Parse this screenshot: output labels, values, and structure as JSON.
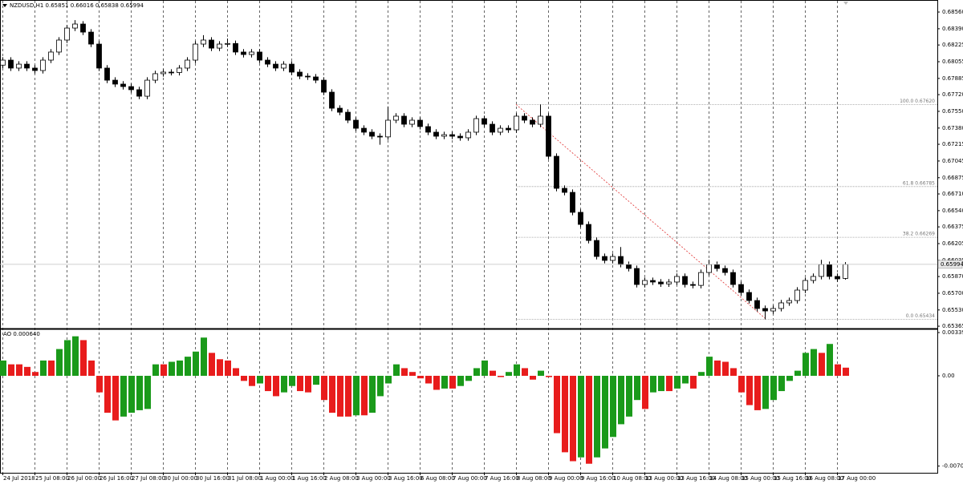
{
  "chart_data": [
    {
      "type": "candlestick",
      "title": "NZDUSD,H1 0.65851 0.66016 0.65838 0.65994",
      "categories": [
        "24 Jul 2018",
        null,
        null,
        null,
        "25 Jul 08:00",
        null,
        null,
        null,
        "26 Jul 00:00",
        null,
        null,
        null,
        "26 Jul 16:00",
        null,
        null,
        null,
        "27 Jul 08:00",
        null,
        null,
        null,
        "30 Jul 00:00",
        null,
        null,
        null,
        "30 Jul 16:00",
        null,
        null,
        null,
        "31 Jul 08:00",
        null,
        null,
        null,
        "1 Aug 00:00",
        null,
        null,
        null,
        "1 Aug 16:00",
        null,
        null,
        null,
        "2 Aug 08:00",
        null,
        null,
        null,
        "3 Aug 00:00",
        null,
        null,
        null,
        "3 Aug 16:00",
        null,
        null,
        null,
        "6 Aug 08:00",
        null,
        null,
        null,
        "7 Aug 00:00",
        null,
        null,
        null,
        "7 Aug 16:00",
        null,
        null,
        null,
        "8 Aug 08:00",
        null,
        null,
        null,
        "9 Aug 00:00",
        null,
        null,
        null,
        "9 Aug 16:00",
        null,
        null,
        null,
        "10 Aug 08:00",
        null,
        null,
        null,
        "13 Aug 00:00",
        null,
        null,
        null,
        "13 Aug 16:00",
        null,
        null,
        null,
        "14 Aug 08:00",
        null,
        null,
        null,
        "15 Aug 00:00",
        null,
        null,
        null,
        "15 Aug 16:00",
        null,
        null,
        null,
        "16 Aug 08:00",
        null,
        null,
        null,
        "17 Aug 00:00",
        null
      ],
      "open": [
        0.6802,
        0.68071,
        0.6799,
        0.6803,
        0.6799,
        0.67965,
        0.68071,
        0.68153,
        0.68275,
        0.68397,
        0.68438,
        0.68356,
        0.68234,
        0.6799,
        0.67867,
        0.67827,
        0.67802,
        0.6777,
        0.67704,
        0.67867,
        0.67933,
        0.67949,
        0.67945,
        0.6799,
        0.68071,
        0.68234,
        0.68275,
        0.68193,
        0.68234,
        0.6824,
        0.68153,
        0.68128,
        0.68153,
        0.68071,
        0.6803,
        0.6799,
        0.6803,
        0.67949,
        0.67908,
        0.679,
        0.67867,
        0.67745,
        0.67582,
        0.67541,
        0.6746,
        0.67378,
        0.67338,
        0.67297,
        0.6729,
        0.6746,
        0.67501,
        0.67419,
        0.6746,
        0.67395,
        0.67338,
        0.67297,
        0.67313,
        0.67297,
        0.67281,
        0.67338,
        0.67476,
        0.67419,
        0.67338,
        0.67378,
        0.67362,
        0.67501,
        0.6746,
        0.67419,
        0.67501,
        0.67093,
        0.66767,
        0.66726,
        0.66523,
        0.664,
        0.66237,
        0.66074,
        0.66034,
        0.66074,
        0.65993,
        0.65952,
        0.65789,
        0.6583,
        0.65814,
        0.65795,
        0.65814,
        0.65871,
        0.65789,
        0.6578,
        0.65911,
        0.65993,
        0.65952,
        0.65911,
        0.65789,
        0.65708,
        0.65626,
        0.65545,
        0.6552,
        0.65545,
        0.65602,
        0.65626,
        0.65732,
        0.6583,
        0.65871,
        0.65993,
        0.65871,
        0.65851
      ],
      "high": [
        0.68101,
        0.68101,
        0.6806,
        0.6806,
        0.6802,
        0.68101,
        0.68183,
        0.68305,
        0.68427,
        0.68478,
        0.68468,
        0.68386,
        0.68264,
        0.6802,
        0.67897,
        0.67857,
        0.67832,
        0.678,
        0.67897,
        0.67963,
        0.67979,
        0.67979,
        0.6802,
        0.68101,
        0.68264,
        0.68325,
        0.68305,
        0.68264,
        0.6829,
        0.6827,
        0.68183,
        0.68183,
        0.68183,
        0.68101,
        0.6806,
        0.6806,
        0.6806,
        0.67979,
        0.67938,
        0.6793,
        0.67897,
        0.67775,
        0.67612,
        0.67571,
        0.6749,
        0.67408,
        0.67368,
        0.67327,
        0.676,
        0.67531,
        0.67531,
        0.6749,
        0.6749,
        0.67425,
        0.67368,
        0.67343,
        0.67343,
        0.67327,
        0.67368,
        0.67506,
        0.67506,
        0.67449,
        0.67408,
        0.67408,
        0.67531,
        0.67531,
        0.6749,
        0.6762,
        0.67531,
        0.67123,
        0.66797,
        0.66756,
        0.66553,
        0.6643,
        0.66267,
        0.66104,
        0.66104,
        0.6617,
        0.66023,
        0.65982,
        0.6586,
        0.6586,
        0.65844,
        0.65844,
        0.65901,
        0.65901,
        0.65819,
        0.65941,
        0.6604,
        0.66023,
        0.65982,
        0.65941,
        0.65819,
        0.65738,
        0.65656,
        0.65575,
        0.65575,
        0.65632,
        0.65656,
        0.65762,
        0.6586,
        0.65901,
        0.6604,
        0.66023,
        0.65901,
        0.66016
      ],
      "low": [
        0.6799,
        0.6796,
        0.6796,
        0.6796,
        0.67935,
        0.67935,
        0.68041,
        0.68123,
        0.68245,
        0.68367,
        0.68326,
        0.68204,
        0.6796,
        0.67837,
        0.67797,
        0.67772,
        0.6774,
        0.67674,
        0.67674,
        0.67837,
        0.67903,
        0.67915,
        0.67915,
        0.6796,
        0.68041,
        0.68204,
        0.68163,
        0.68163,
        0.68204,
        0.68123,
        0.68098,
        0.68098,
        0.68041,
        0.68,
        0.6796,
        0.6796,
        0.67919,
        0.67878,
        0.6787,
        0.67837,
        0.67715,
        0.67552,
        0.67511,
        0.6743,
        0.67348,
        0.67308,
        0.67267,
        0.6721,
        0.6726,
        0.6743,
        0.67389,
        0.67389,
        0.67365,
        0.67308,
        0.67267,
        0.67267,
        0.67267,
        0.67251,
        0.67251,
        0.67308,
        0.67389,
        0.67308,
        0.67308,
        0.67332,
        0.67332,
        0.6743,
        0.67389,
        0.67389,
        0.67063,
        0.66737,
        0.66696,
        0.66493,
        0.6637,
        0.66207,
        0.66044,
        0.66004,
        0.66004,
        0.65963,
        0.65922,
        0.65759,
        0.65759,
        0.65784,
        0.65765,
        0.65765,
        0.65784,
        0.65759,
        0.6575,
        0.6575,
        0.65881,
        0.65922,
        0.65881,
        0.65759,
        0.65678,
        0.65596,
        0.65515,
        0.65434,
        0.6549,
        0.65515,
        0.65572,
        0.65596,
        0.65702,
        0.658,
        0.65841,
        0.65841,
        0.65816,
        0.65838
      ],
      "close": [
        0.68071,
        0.6799,
        0.6803,
        0.6799,
        0.67965,
        0.68071,
        0.68153,
        0.68275,
        0.68397,
        0.68438,
        0.68356,
        0.68234,
        0.6799,
        0.67867,
        0.67827,
        0.67802,
        0.6777,
        0.67704,
        0.67867,
        0.67933,
        0.67949,
        0.67945,
        0.6799,
        0.68071,
        0.68234,
        0.68275,
        0.68193,
        0.68234,
        0.6824,
        0.68153,
        0.68128,
        0.68153,
        0.68071,
        0.6803,
        0.6799,
        0.6803,
        0.67949,
        0.67908,
        0.679,
        0.67867,
        0.67745,
        0.67582,
        0.67541,
        0.6746,
        0.67378,
        0.67338,
        0.67297,
        0.6729,
        0.6746,
        0.67501,
        0.67419,
        0.6746,
        0.67395,
        0.67338,
        0.67297,
        0.67313,
        0.67297,
        0.67281,
        0.67338,
        0.67476,
        0.67419,
        0.67338,
        0.67378,
        0.67362,
        0.67501,
        0.6746,
        0.67419,
        0.67501,
        0.67093,
        0.66767,
        0.66726,
        0.66523,
        0.664,
        0.66237,
        0.66074,
        0.66034,
        0.66074,
        0.65993,
        0.65952,
        0.65789,
        0.6583,
        0.65814,
        0.65795,
        0.65814,
        0.65871,
        0.65789,
        0.6578,
        0.65911,
        0.65993,
        0.65952,
        0.65911,
        0.65789,
        0.65708,
        0.65626,
        0.65545,
        0.6552,
        0.65545,
        0.65602,
        0.65626,
        0.65732,
        0.6583,
        0.65871,
        0.65993,
        0.65871,
        0.65846,
        0.65994
      ],
      "up_color": "#ffffff",
      "down_color": "#000000",
      "wick_color": "#000000",
      "ylim": [
        0.65341,
        0.68658
      ],
      "yticks": [
        {
          "value": 0.6856,
          "label": "0.68560"
        },
        {
          "value": 0.6839,
          "label": "0.68390"
        },
        0.68225,
        0.68055,
        0.67885,
        {
          "value": 0.6772,
          "label": "0.67720"
        },
        {
          "value": 0.6755,
          "label": "0.67550"
        },
        {
          "value": 0.6738,
          "label": "0.67380"
        },
        0.67215,
        0.67045,
        0.66875,
        {
          "value": 0.6671,
          "label": "0.66710"
        },
        {
          "value": 0.6654,
          "label": "0.66540"
        },
        0.66375,
        0.66205,
        0.66035,
        {
          "value": 0.6587,
          "label": "0.65870"
        },
        {
          "value": 0.657,
          "label": "0.65700"
        },
        {
          "value": 0.6553,
          "label": "0.65530"
        },
        0.65365
      ],
      "grid": true,
      "fibonacci": [
        {
          "label": "100.0 0.67620",
          "value": 0.6762
        },
        {
          "label": "61.8 0.66785",
          "value": 0.66785
        },
        {
          "label": "38.2 0.66269",
          "value": 0.66269
        },
        {
          "label": "0.0 0.65434",
          "value": 0.65434
        }
      ],
      "trendline_color": "#e03030"
    },
    {
      "type": "histogram",
      "title": "AO 0.000640",
      "values": [
        0.0012,
        0.0009,
        0.0009,
        0.0007,
        0.0003,
        0.0012,
        0.0012,
        0.0021,
        0.0028,
        0.0031,
        0.0028,
        0.0012,
        -0.0013,
        -0.0029,
        -0.0035,
        -0.0032,
        -0.0029,
        -0.0027,
        -0.0026,
        0.0009,
        0.0009,
        0.0011,
        0.0012,
        0.0015,
        0.0019,
        0.003,
        0.0018,
        0.0013,
        0.0012,
        0.0006,
        -0.0004,
        -0.0008,
        -0.0006,
        -0.0012,
        -0.0016,
        -0.0013,
        -0.0008,
        -0.0012,
        -0.0013,
        -0.0007,
        -0.0019,
        -0.0029,
        -0.0032,
        -0.0032,
        -0.0031,
        -0.0031,
        -0.0029,
        -0.0016,
        -0.0006,
        0.0009,
        0.0006,
        0.0003,
        -0.0002,
        -0.0006,
        -0.0011,
        -0.001,
        -0.001,
        -0.0008,
        -0.0004,
        0.0006,
        0.0012,
        0.0004,
        -0.0001,
        0.0003,
        0.0009,
        0.0006,
        -0.0003,
        0.0004,
        -0.0001,
        -0.0045,
        -0.006,
        -0.0067,
        -0.0064,
        -0.0069,
        -0.0064,
        -0.0057,
        -0.0048,
        -0.0038,
        -0.0032,
        -0.0019,
        -0.0026,
        -0.0013,
        -0.0012,
        -0.0012,
        -0.001,
        -0.0006,
        -0.001,
        0.0003,
        0.0015,
        0.0012,
        0.0011,
        0.0006,
        -0.0013,
        -0.0023,
        -0.0027,
        -0.0026,
        -0.0019,
        -0.0012,
        -0.0004,
        0.0004,
        0.0018,
        0.0021,
        0.0018,
        0.0025,
        0.0009,
        0.00064
      ],
      "up_color": "#1a9a1a",
      "down_color": "#e81c1c",
      "ylim": [
        -0.00761,
        0.00352
      ],
      "yticks": [
        0.003394,
        {
          "value": 0,
          "label": "0.00"
        },
        -0.007085
      ]
    }
  ]
}
